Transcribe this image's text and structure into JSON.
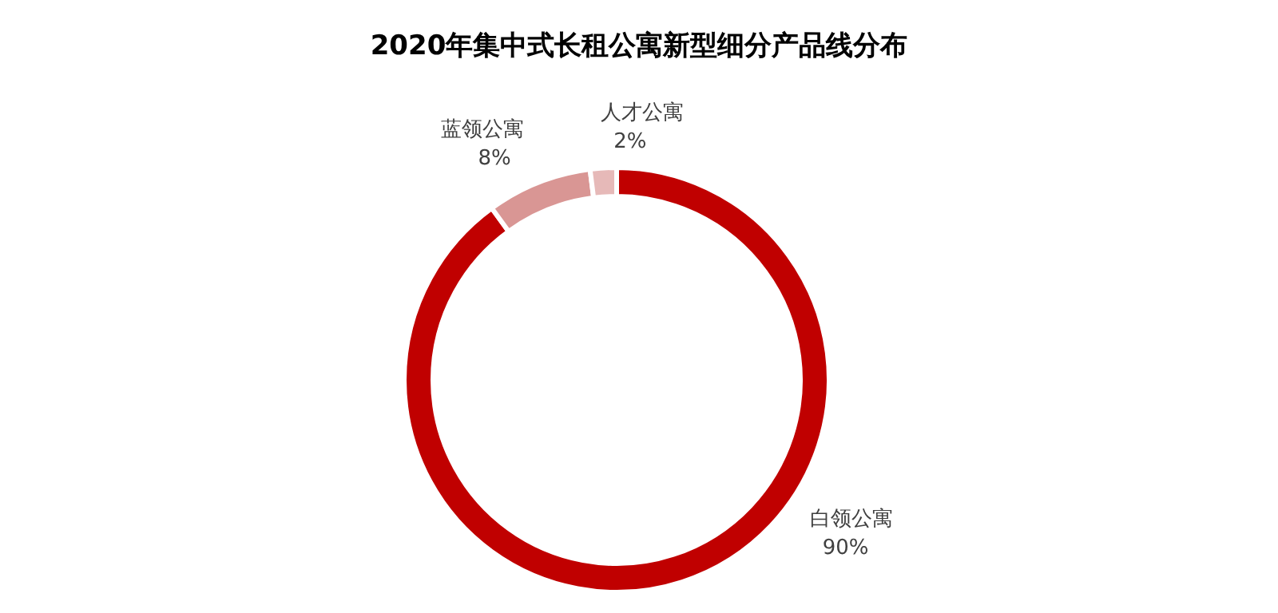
{
  "chart_data": {
    "type": "donut",
    "title": "2020年集中式长租公寓新型细分产品线分布",
    "categories": [
      "白领公寓",
      "蓝领公寓",
      "人才公寓"
    ],
    "values": [
      90,
      8,
      2
    ],
    "colors": [
      "#c00000",
      "#d99694",
      "#e6b9b8"
    ],
    "value_labels": [
      "90%",
      "8%",
      "2%"
    ]
  }
}
